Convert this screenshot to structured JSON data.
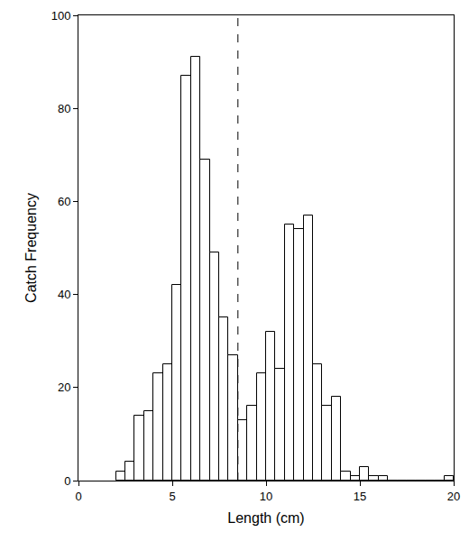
{
  "chart_data": {
    "type": "histogram",
    "x_label": "Length (cm)",
    "y_label": "Catch Frequency",
    "bins": [
      2.0,
      2.5,
      3.0,
      3.5,
      4.0,
      4.5,
      5.0,
      5.5,
      6.0,
      6.5,
      7.0,
      7.5,
      8.0,
      8.5,
      9.0,
      9.5,
      10.0,
      10.5,
      11.0,
      11.5,
      12.0,
      12.5,
      13.0,
      13.5,
      14.0,
      14.5,
      15.0,
      15.5,
      16.0,
      16.5,
      17.0,
      17.5,
      18.0,
      18.5,
      19.0,
      19.5,
      20.0
    ],
    "values": [
      2,
      4,
      14,
      15,
      23,
      25,
      42,
      87,
      91,
      69,
      49,
      35,
      27,
      13,
      16,
      23,
      32,
      24,
      55,
      54,
      57,
      25,
      16,
      18,
      2,
      1,
      3,
      1,
      1,
      0,
      0,
      0,
      0,
      0,
      0,
      1
    ],
    "color": "#ffffff",
    "threshold": 8.5,
    "xlim": [
      0,
      20
    ],
    "xticks": [
      0,
      5,
      10,
      15,
      20
    ],
    "ylim": [
      0,
      100
    ],
    "yticks": [
      0,
      20,
      40,
      60,
      80,
      100
    ],
    "grid": false
  }
}
